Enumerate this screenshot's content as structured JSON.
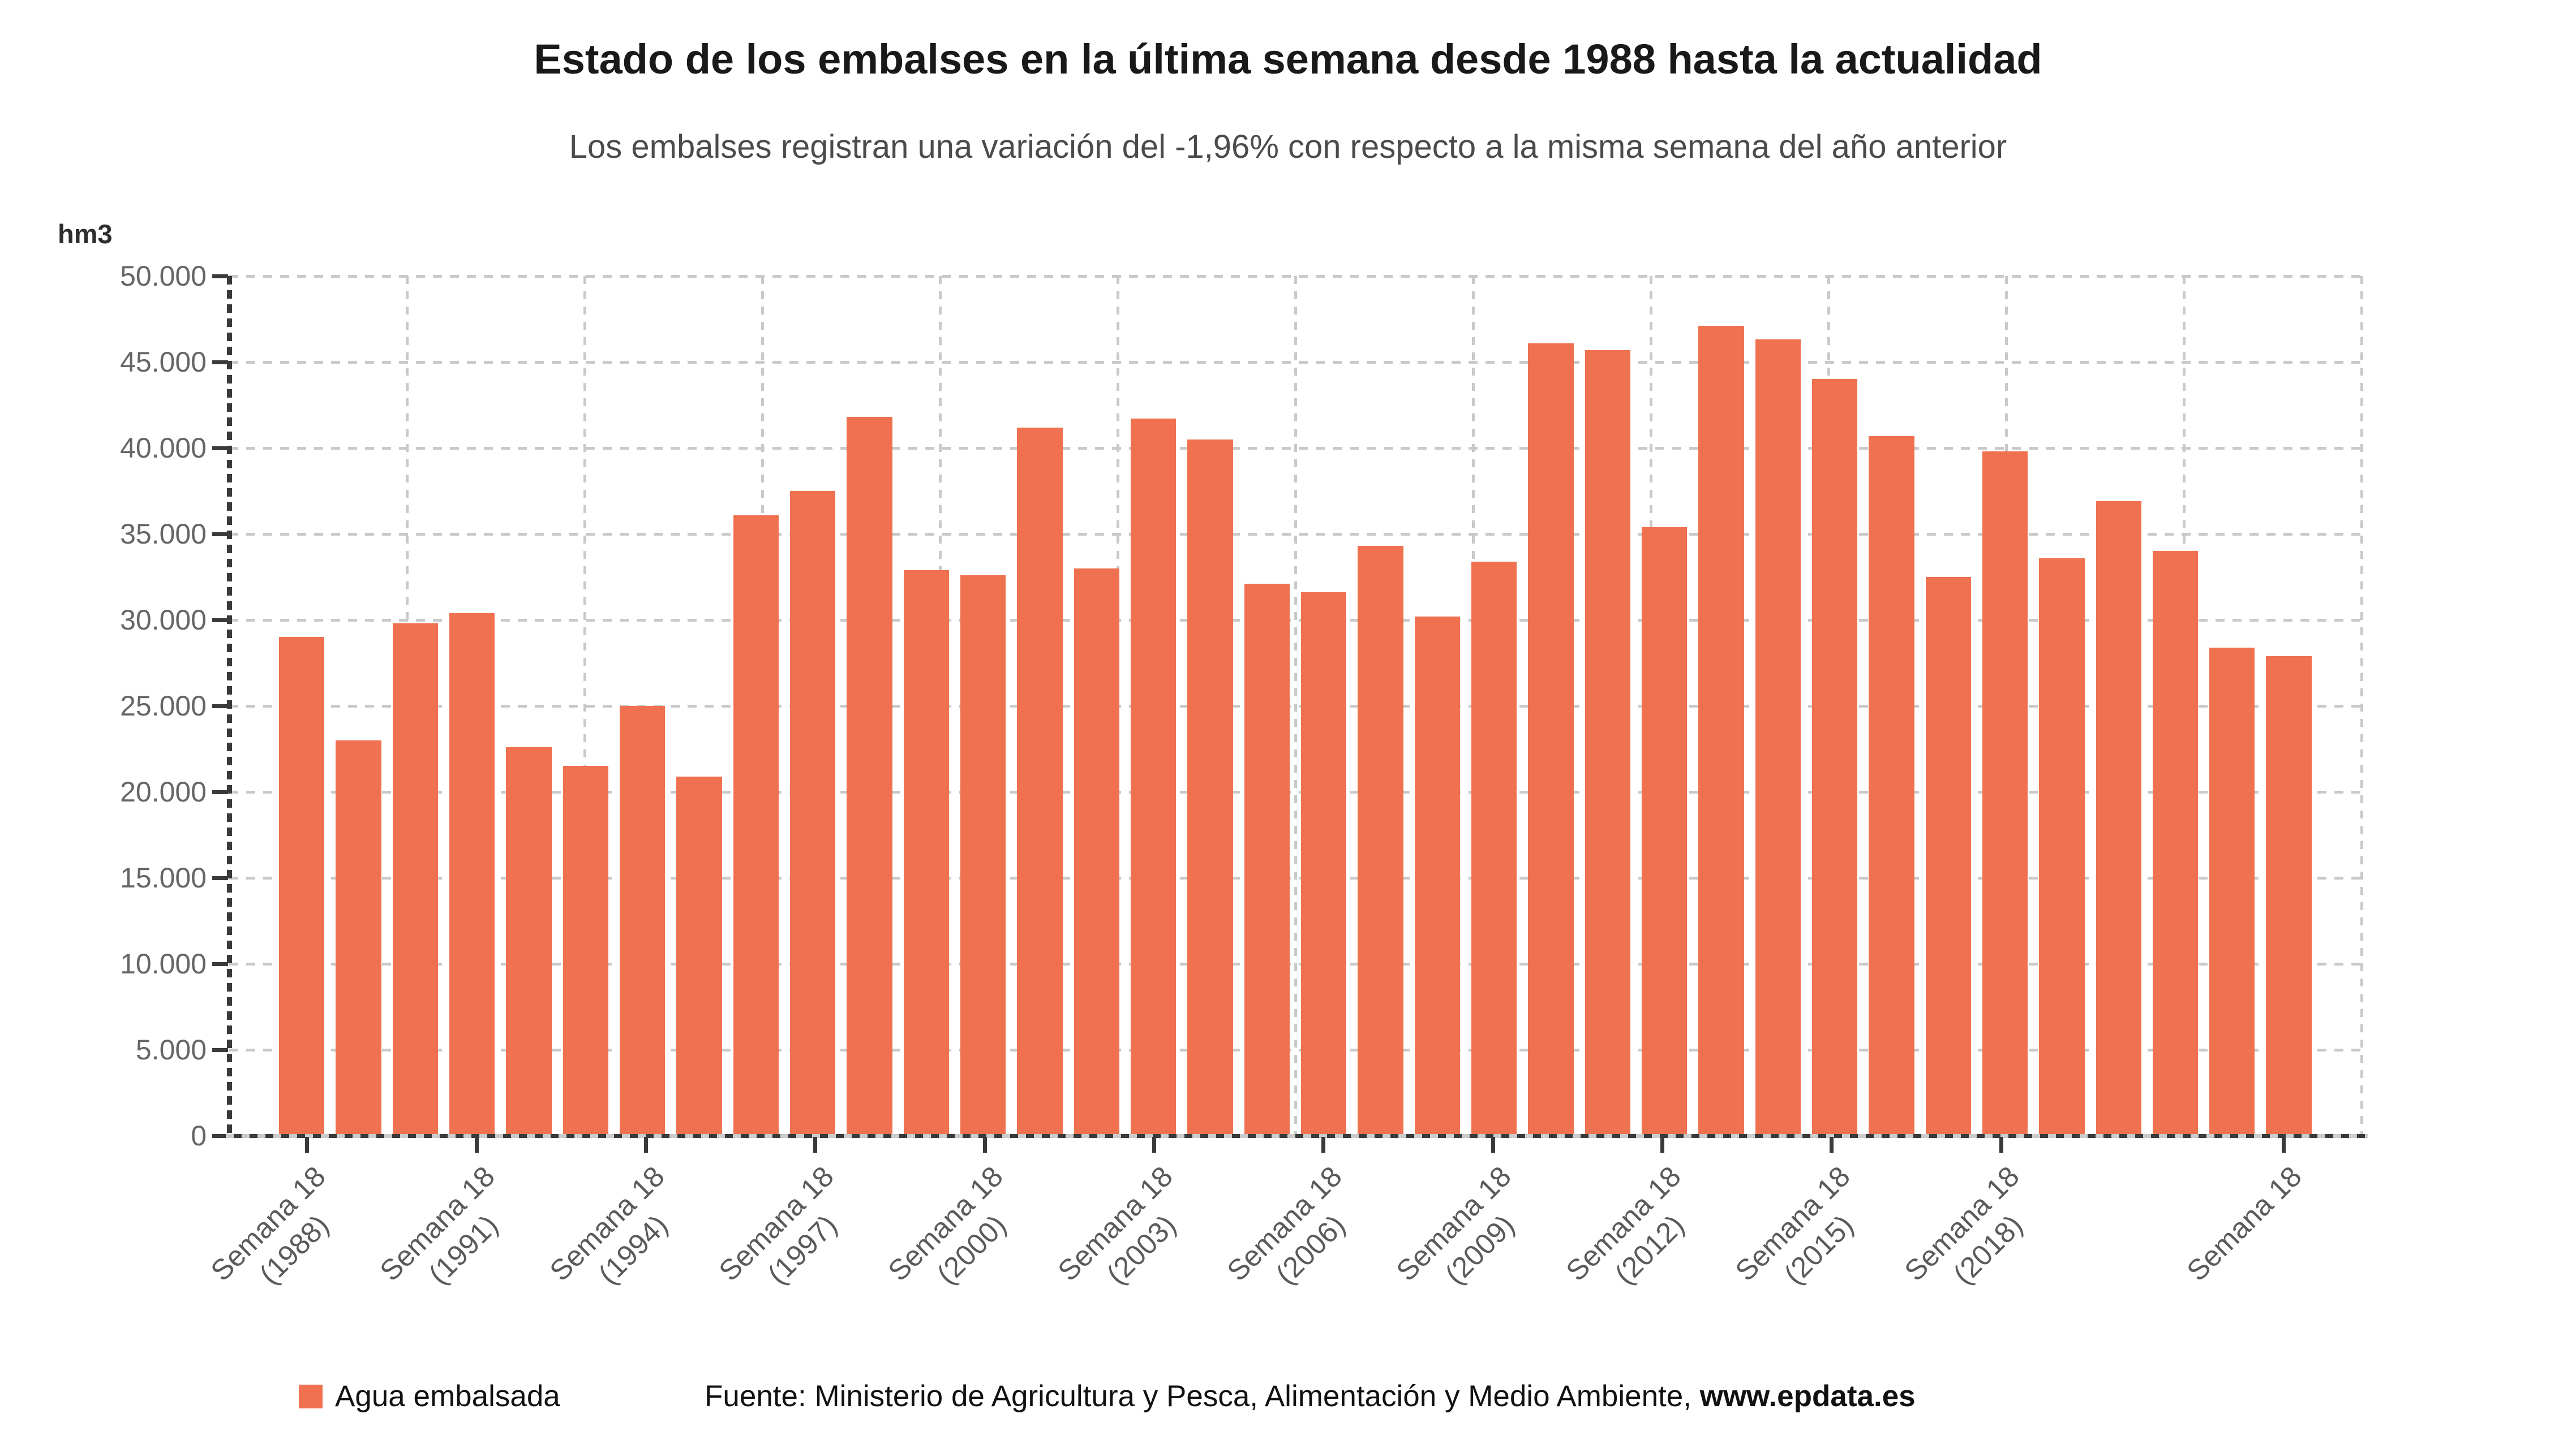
{
  "chart_data": {
    "type": "bar",
    "title": "Estado de los embalses en la última semana desde 1988 hasta la actualidad",
    "subtitle": "Los embalses registran una variación del -1,96% con respecto a la misma semana del año anterior",
    "unit_label": "hm3",
    "ylim": [
      0,
      50000
    ],
    "grid": true,
    "legend_position": "bottom",
    "bar_color": "#F0714F",
    "y_ticks": [
      "0",
      "5.000",
      "10.000",
      "15.000",
      "20.000",
      "25.000",
      "30.000",
      "35.000",
      "40.000",
      "45.000",
      "50.000"
    ],
    "categories": [
      "1988",
      "1989",
      "1990",
      "1991",
      "1992",
      "1993",
      "1994",
      "1995",
      "1996",
      "1997",
      "1998",
      "1999",
      "2000",
      "2001",
      "2002",
      "2003",
      "2004",
      "2005",
      "2006",
      "2007",
      "2008",
      "2009",
      "2010",
      "2011",
      "2012",
      "2013",
      "2014",
      "2015",
      "2016",
      "2017",
      "2018",
      "2019",
      "2020",
      "2021",
      "2022",
      "2023"
    ],
    "values": [
      29000,
      23000,
      29800,
      30400,
      22600,
      21500,
      25000,
      20900,
      36100,
      37500,
      41800,
      32900,
      32600,
      41200,
      33000,
      41700,
      40500,
      32100,
      31600,
      34300,
      30200,
      33400,
      46100,
      45700,
      35400,
      47100,
      46300,
      44000,
      40700,
      32500,
      39800,
      33600,
      36900,
      34000,
      28400,
      27900
    ],
    "series_name": "Agua embalsada",
    "x_ticks": [
      {
        "index": 0,
        "label": "Semana 18",
        "year": "(1988)"
      },
      {
        "index": 3,
        "label": "Semana 18",
        "year": "(1991)"
      },
      {
        "index": 6,
        "label": "Semana 18",
        "year": "(1994)"
      },
      {
        "index": 9,
        "label": "Semana 18",
        "year": "(1997)"
      },
      {
        "index": 12,
        "label": "Semana 18",
        "year": "(2000)"
      },
      {
        "index": 15,
        "label": "Semana 18",
        "year": "(2003)"
      },
      {
        "index": 18,
        "label": "Semana 18",
        "year": "(2006)"
      },
      {
        "index": 21,
        "label": "Semana 18",
        "year": "(2009)"
      },
      {
        "index": 24,
        "label": "Semana 18",
        "year": "(2012)"
      },
      {
        "index": 27,
        "label": "Semana 18",
        "year": "(2015)"
      },
      {
        "index": 30,
        "label": "Semana 18",
        "year": "(2018)"
      },
      {
        "index": 35,
        "label": "Semana 18",
        "year": ""
      }
    ],
    "legend": "Agua embalsada",
    "source_prefix": "Fuente: Ministerio de Agricultura y Pesca, Alimentación y Medio Ambiente, ",
    "source_link": "www.epdata.es"
  }
}
